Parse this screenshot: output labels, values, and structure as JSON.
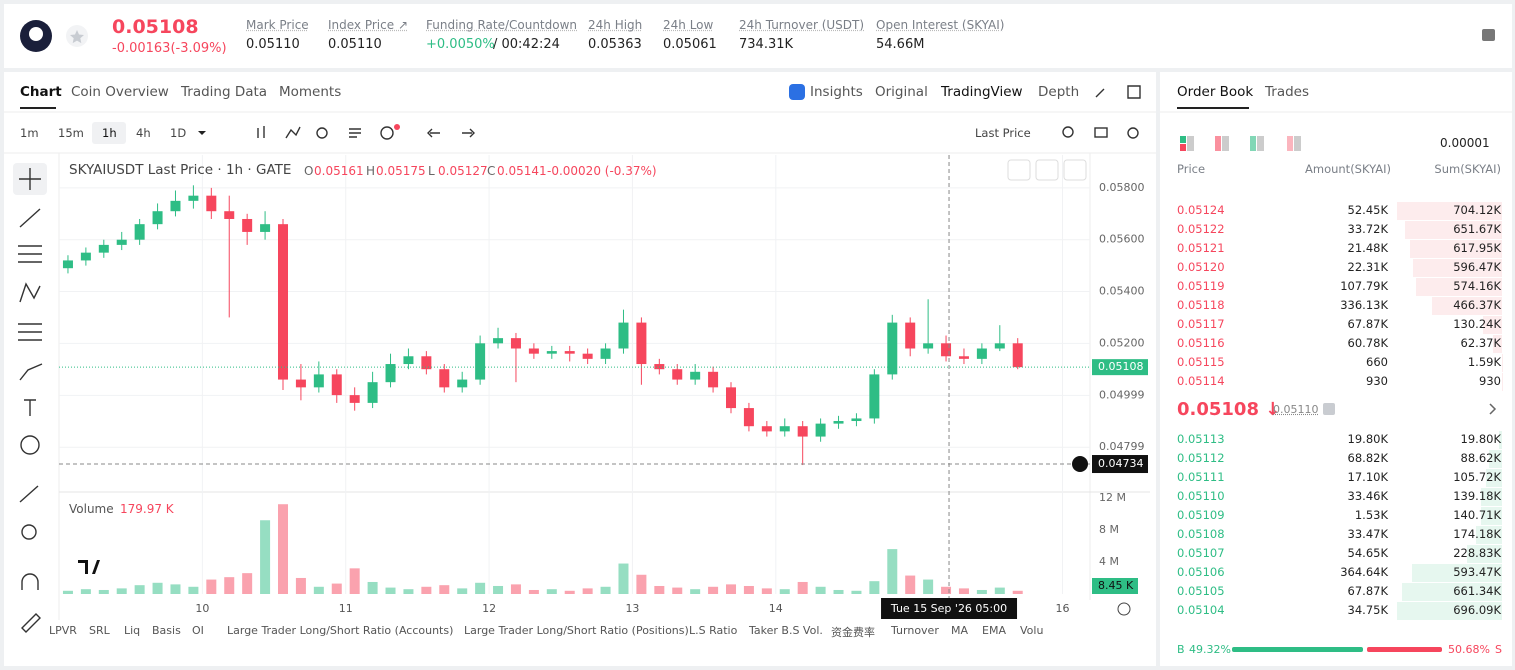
{
  "header": {
    "price": "0.05108",
    "change": "-0.00163(-3.09%)",
    "stats": [
      {
        "label": "Mark Price",
        "value": "0.05110"
      },
      {
        "label": "Index Price ↗",
        "value": "0.05110"
      },
      {
        "label": "Funding Rate/Countdown",
        "value": "+0.0050%",
        "countdown": "/ 00:42:24"
      },
      {
        "label": "24h High",
        "value": "0.05363"
      },
      {
        "label": "24h Low",
        "value": "0.05061"
      },
      {
        "label": "24h Turnover (USDT)",
        "value": "734.31K"
      },
      {
        "label": "Open Interest (SKYAI)",
        "value": "54.66M"
      }
    ]
  },
  "tabs": [
    "Chart",
    "Coin Overview",
    "Trading Data",
    "Moments"
  ],
  "views": [
    "Insights",
    "Original",
    "TradingView",
    "Depth"
  ],
  "intervals": [
    "1m",
    "15m",
    "1h",
    "4h",
    "1D"
  ],
  "price_type": "Last Price",
  "legend": {
    "symbol": "SKYAIUSDT Last Price · 1h · GATE",
    "o": "O",
    "o_value": "0.05161",
    "h": "H",
    "h_value": "0.05175",
    "l": "L",
    "l_value": "0.05127",
    "c": "C",
    "c_value": "0.05141",
    "change": "-0.00020 (-0.37%)",
    "volume": "Volume",
    "volume_value": "179.97 K"
  },
  "chart_data": {
    "type": "candlestick",
    "up_color": "#2ebd85",
    "down_color": "#f6465d",
    "grid": true,
    "x": [
      1.5,
      4.5,
      7.5,
      10.5,
      13.5,
      16.5,
      19.5,
      22.5,
      25.5,
      28.5,
      31.5,
      34.5,
      37.5,
      40.5,
      43.5,
      46.5,
      49.5,
      52.5,
      55.5,
      58.5,
      61.5,
      64.5,
      67.5,
      70.5,
      73.5,
      76.5,
      79.5,
      82.5,
      85.5,
      88.5,
      91.5,
      94.5,
      97.5,
      100.5,
      103.5,
      106.5,
      109.5,
      112.5,
      115.5,
      118.5,
      121.5,
      124.5,
      127.5,
      130.5,
      133.5,
      136.5,
      139.5,
      142.5,
      145.5,
      148.5,
      151.5,
      154.5,
      157.5,
      160.5
    ],
    "open": [
      0.0549,
      0.0552,
      0.0555,
      0.0558,
      0.056,
      0.0566,
      0.0571,
      0.0575,
      0.0577,
      0.0571,
      0.0568,
      0.0563,
      0.0566,
      0.0506,
      0.0503,
      0.0508,
      0.05,
      0.0497,
      0.0505,
      0.0512,
      0.0515,
      0.051,
      0.0503,
      0.0506,
      0.052,
      0.0522,
      0.0518,
      0.0516,
      0.0517,
      0.0516,
      0.0514,
      0.0518,
      0.0528,
      0.0512,
      0.051,
      0.0506,
      0.0509,
      0.0503,
      0.0495,
      0.0488,
      0.0486,
      0.0488,
      0.0484,
      0.0489,
      0.049,
      0.0491,
      0.0508,
      0.0528,
      0.0518,
      0.052,
      0.0515,
      0.0514,
      0.0518,
      0.052
    ],
    "high": [
      0.0554,
      0.0557,
      0.056,
      0.0563,
      0.0568,
      0.0574,
      0.0579,
      0.0581,
      0.058,
      0.0577,
      0.057,
      0.0571,
      0.0568,
      0.0512,
      0.0513,
      0.051,
      0.0503,
      0.0509,
      0.0516,
      0.0518,
      0.0517,
      0.0512,
      0.0509,
      0.0523,
      0.0526,
      0.0524,
      0.052,
      0.0519,
      0.0519,
      0.0518,
      0.052,
      0.0533,
      0.053,
      0.0514,
      0.0512,
      0.0512,
      0.0511,
      0.0505,
      0.0497,
      0.049,
      0.0491,
      0.049,
      0.0491,
      0.0492,
      0.0493,
      0.051,
      0.0531,
      0.053,
      0.0537,
      0.0523,
      0.0518,
      0.052,
      0.0527,
      0.0522
    ],
    "low": [
      0.0547,
      0.055,
      0.0553,
      0.0556,
      0.0558,
      0.0564,
      0.0569,
      0.0572,
      0.0568,
      0.053,
      0.0558,
      0.056,
      0.0502,
      0.0498,
      0.0501,
      0.0497,
      0.0494,
      0.0495,
      0.0503,
      0.051,
      0.0508,
      0.0501,
      0.0501,
      0.0504,
      0.0518,
      0.0505,
      0.0514,
      0.0514,
      0.0513,
      0.0512,
      0.0512,
      0.0516,
      0.0504,
      0.0508,
      0.0504,
      0.0504,
      0.0501,
      0.0493,
      0.0486,
      0.0484,
      0.0484,
      0.0473,
      0.0482,
      0.0487,
      0.0488,
      0.0489,
      0.0506,
      0.0515,
      0.0516,
      0.0513,
      0.0512,
      0.0512,
      0.0517,
      0.051
    ],
    "close": [
      0.0552,
      0.0555,
      0.0558,
      0.056,
      0.0566,
      0.0571,
      0.0575,
      0.0577,
      0.0571,
      0.0568,
      0.0563,
      0.0566,
      0.0506,
      0.0503,
      0.0508,
      0.05,
      0.0497,
      0.0505,
      0.0512,
      0.0515,
      0.051,
      0.0503,
      0.0506,
      0.052,
      0.0522,
      0.0518,
      0.0516,
      0.0517,
      0.0516,
      0.0514,
      0.0518,
      0.0528,
      0.0512,
      0.051,
      0.0506,
      0.0509,
      0.0503,
      0.0495,
      0.0488,
      0.0486,
      0.0488,
      0.0484,
      0.0489,
      0.049,
      0.0491,
      0.0508,
      0.0528,
      0.0518,
      0.052,
      0.0515,
      0.0514,
      0.0518,
      0.052,
      0.05108
    ],
    "volume": [
      400000,
      600000,
      500000,
      700000,
      1100000,
      1400000,
      1200000,
      900000,
      1800000,
      2100000,
      2600000,
      9200000,
      11200000,
      2000000,
      900000,
      1300000,
      3200000,
      1500000,
      800000,
      600000,
      900000,
      1100000,
      700000,
      1400000,
      1000000,
      1200000,
      500000,
      600000,
      400000,
      700000,
      900000,
      3800000,
      2400000,
      1000000,
      800000,
      600000,
      900000,
      1200000,
      1000000,
      700000,
      600000,
      1500000,
      900000,
      500000,
      400000,
      1600000,
      5600000,
      2300000,
      1800000,
      900000,
      700000,
      500000,
      800000,
      400000
    ],
    "xlim": [
      0,
      172.6
    ],
    "xticks": [
      {
        "value": 24,
        "label": "10"
      },
      {
        "value": 48,
        "label": "11"
      },
      {
        "value": 72,
        "label": "12"
      },
      {
        "value": 96,
        "label": "13"
      },
      {
        "value": 120,
        "label": "14"
      },
      {
        "value": 168,
        "label": "16"
      }
    ],
    "ylim": [
      0.04626,
      0.05927
    ],
    "yticks": [
      {
        "value": 0.058,
        "label": "0.05800"
      },
      {
        "value": 0.056,
        "label": "0.05600"
      },
      {
        "value": 0.054,
        "label": "0.05400"
      },
      {
        "value": 0.052,
        "label": "0.05200"
      },
      0.04999,
      0.04799
    ],
    "y2lim": [
      0,
      12600000
    ],
    "y2ticks": [
      {
        "value": 12000000,
        "label": "12 M"
      },
      {
        "value": 8000000,
        "label": "8 M"
      },
      {
        "value": 4000000,
        "label": "4 M"
      }
    ],
    "last_price": {
      "value": 0.05108,
      "label": "0.05108"
    },
    "last_volume": {
      "value": 8450,
      "label": "8.45 K"
    },
    "crosshair": {
      "x": {
        "value": 149,
        "label": "Tue 15 Sep '26   05:00"
      },
      "y": {
        "value": 0.04734,
        "label": "0.04734"
      }
    }
  },
  "indicators": [
    "LPVR",
    "SRL",
    "Liq",
    "Basis",
    "OI",
    "Large Trader Long/Short Ratio (Accounts)",
    "Large Trader Long/Short Ratio (Positions)",
    "L.S Ratio",
    "Taker B.S Vol.",
    "资金费率",
    "Turnover",
    "MA",
    "EMA",
    "Volu"
  ],
  "order_book": {
    "tabs": [
      "Order Book",
      "Trades"
    ],
    "precision": "0.00001",
    "columns": [
      "Price",
      "Amount(SKYAI)",
      "Sum(SKYAI)"
    ],
    "asks": [
      {
        "price": "0.05124",
        "amount": "52.45K",
        "sum": {
          "value": 704120,
          "label": "704.12K"
        }
      },
      {
        "price": "0.05122",
        "amount": "33.72K",
        "sum": {
          "value": 651670,
          "label": "651.67K"
        }
      },
      {
        "price": "0.05121",
        "amount": "21.48K",
        "sum": {
          "value": 617950,
          "label": "617.95K"
        }
      },
      {
        "price": "0.05120",
        "amount": "22.31K",
        "sum": {
          "value": 596470,
          "label": "596.47K"
        }
      },
      {
        "price": "0.05119",
        "amount": "107.79K",
        "sum": {
          "value": 574160,
          "label": "574.16K"
        }
      },
      {
        "price": "0.05118",
        "amount": "336.13K",
        "sum": {
          "value": 466370,
          "label": "466.37K"
        }
      },
      {
        "price": "0.05117",
        "amount": "67.87K",
        "sum": {
          "value": 130240,
          "label": "130.24K"
        }
      },
      {
        "price": "0.05116",
        "amount": "60.78K",
        "sum": {
          "value": 62370,
          "label": "62.37K"
        }
      },
      {
        "price": "0.05115",
        "amount": "660",
        "sum": {
          "value": 1590,
          "label": "1.59K"
        }
      },
      {
        "price": "0.05114",
        "amount": "930",
        "sum": 930
      }
    ],
    "last": "0.05108 ↓",
    "mark": "0.05110",
    "bids": [
      {
        "price": "0.05113",
        "amount": "19.80K",
        "sum": {
          "value": 19800,
          "label": "19.80K"
        }
      },
      {
        "price": "0.05112",
        "amount": "68.82K",
        "sum": {
          "value": 88620,
          "label": "88.62K"
        }
      },
      {
        "price": "0.05111",
        "amount": "17.10K",
        "sum": {
          "value": 105720,
          "label": "105.72K"
        }
      },
      {
        "price": "0.05110",
        "amount": "33.46K",
        "sum": {
          "value": 139180,
          "label": "139.18K"
        }
      },
      {
        "price": "0.05109",
        "amount": "1.53K",
        "sum": {
          "value": 140710,
          "label": "140.71K"
        }
      },
      {
        "price": "0.05108",
        "amount": "33.47K",
        "sum": {
          "value": 174180,
          "label": "174.18K"
        }
      },
      {
        "price": "0.05107",
        "amount": "54.65K",
        "sum": {
          "value": 228830,
          "label": "228.83K"
        }
      },
      {
        "price": "0.05106",
        "amount": "364.64K",
        "sum": {
          "value": 593470,
          "label": "593.47K"
        }
      },
      {
        "price": "0.05105",
        "amount": "67.87K",
        "sum": {
          "value": 661340,
          "label": "661.34K"
        }
      },
      {
        "price": "0.05104",
        "amount": "34.75K",
        "sum": {
          "value": 696090,
          "label": "696.09K"
        }
      }
    ],
    "buy": "B",
    "buy_ratio": {
      "value": 49.32,
      "label": "49.32%"
    },
    "sell_ratio": {
      "value": 50.68,
      "label": "50.68%"
    },
    "sell": "S"
  }
}
